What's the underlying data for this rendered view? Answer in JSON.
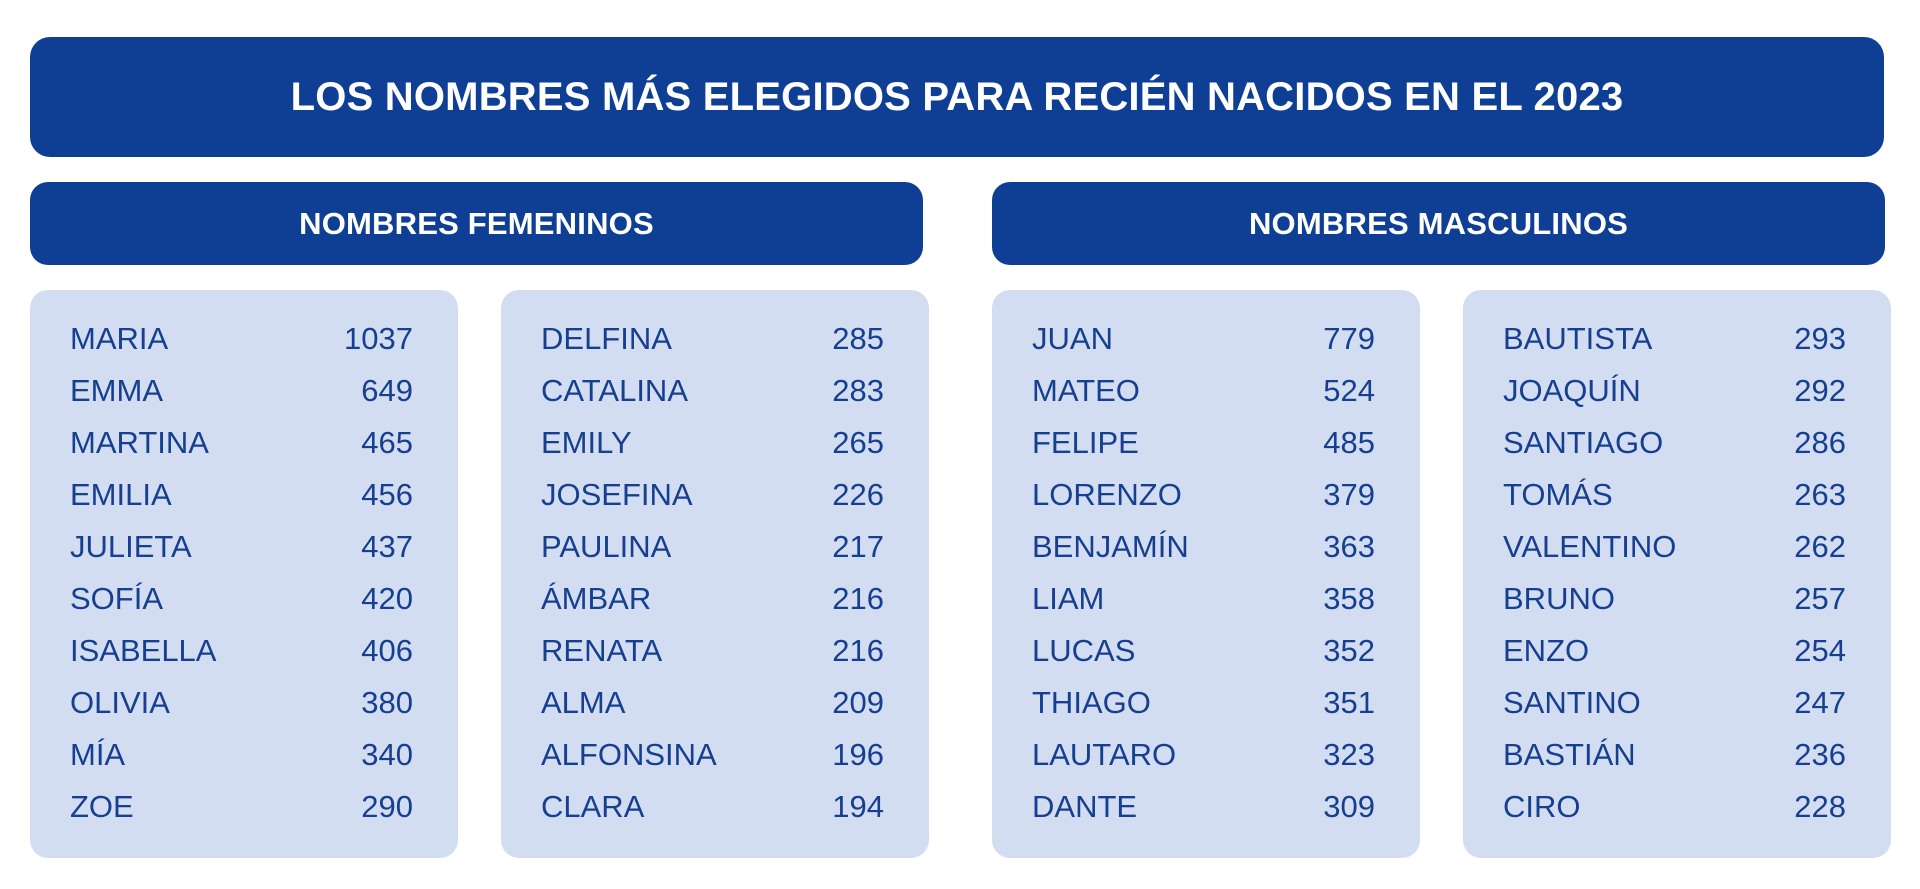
{
  "title": "LOS NOMBRES MÁS ELEGIDOS PARA RECIÉN NACIDOS EN EL 2023",
  "female": {
    "header": "NOMBRES FEMENINOS",
    "columns": [
      [
        {
          "name": "MARIA",
          "count": "1037"
        },
        {
          "name": "EMMA",
          "count": "649"
        },
        {
          "name": "MARTINA",
          "count": "465"
        },
        {
          "name": "EMILIA",
          "count": "456"
        },
        {
          "name": "JULIETA",
          "count": "437"
        },
        {
          "name": "SOFÍA",
          "count": "420"
        },
        {
          "name": "ISABELLA",
          "count": "406"
        },
        {
          "name": "OLIVIA",
          "count": "380"
        },
        {
          "name": "MÍA",
          "count": "340"
        },
        {
          "name": "ZOE",
          "count": "290"
        }
      ],
      [
        {
          "name": "DELFINA",
          "count": "285"
        },
        {
          "name": "CATALINA",
          "count": "283"
        },
        {
          "name": "EMILY",
          "count": "265"
        },
        {
          "name": "JOSEFINA",
          "count": "226"
        },
        {
          "name": "PAULINA",
          "count": "217"
        },
        {
          "name": "ÁMBAR",
          "count": "216"
        },
        {
          "name": "RENATA",
          "count": "216"
        },
        {
          "name": "ALMA",
          "count": "209"
        },
        {
          "name": "ALFONSINA",
          "count": "196"
        },
        {
          "name": "CLARA",
          "count": "194"
        }
      ]
    ]
  },
  "male": {
    "header": "NOMBRES MASCULINOS",
    "columns": [
      [
        {
          "name": "JUAN",
          "count": "779"
        },
        {
          "name": "MATEO",
          "count": "524"
        },
        {
          "name": "FELIPE",
          "count": "485"
        },
        {
          "name": "LORENZO",
          "count": "379"
        },
        {
          "name": "BENJAMÍN",
          "count": "363"
        },
        {
          "name": "LIAM",
          "count": "358"
        },
        {
          "name": "LUCAS",
          "count": "352"
        },
        {
          "name": "THIAGO",
          "count": "351"
        },
        {
          "name": "LAUTARO",
          "count": "323"
        },
        {
          "name": "DANTE",
          "count": "309"
        }
      ],
      [
        {
          "name": "BAUTISTA",
          "count": "293"
        },
        {
          "name": "JOAQUÍN",
          "count": "292"
        },
        {
          "name": "SANTIAGO",
          "count": "286"
        },
        {
          "name": "TOMÁS",
          "count": "263"
        },
        {
          "name": "VALENTINO",
          "count": "262"
        },
        {
          "name": "BRUNO",
          "count": "257"
        },
        {
          "name": "ENZO",
          "count": "254"
        },
        {
          "name": "SANTINO",
          "count": "247"
        },
        {
          "name": "BASTIÁN",
          "count": "236"
        },
        {
          "name": "CIRO",
          "count": "228"
        }
      ]
    ]
  },
  "colors": {
    "header_bg": "#0f3f94",
    "card_bg": "#d3ddf2",
    "text": "#163f8f"
  }
}
